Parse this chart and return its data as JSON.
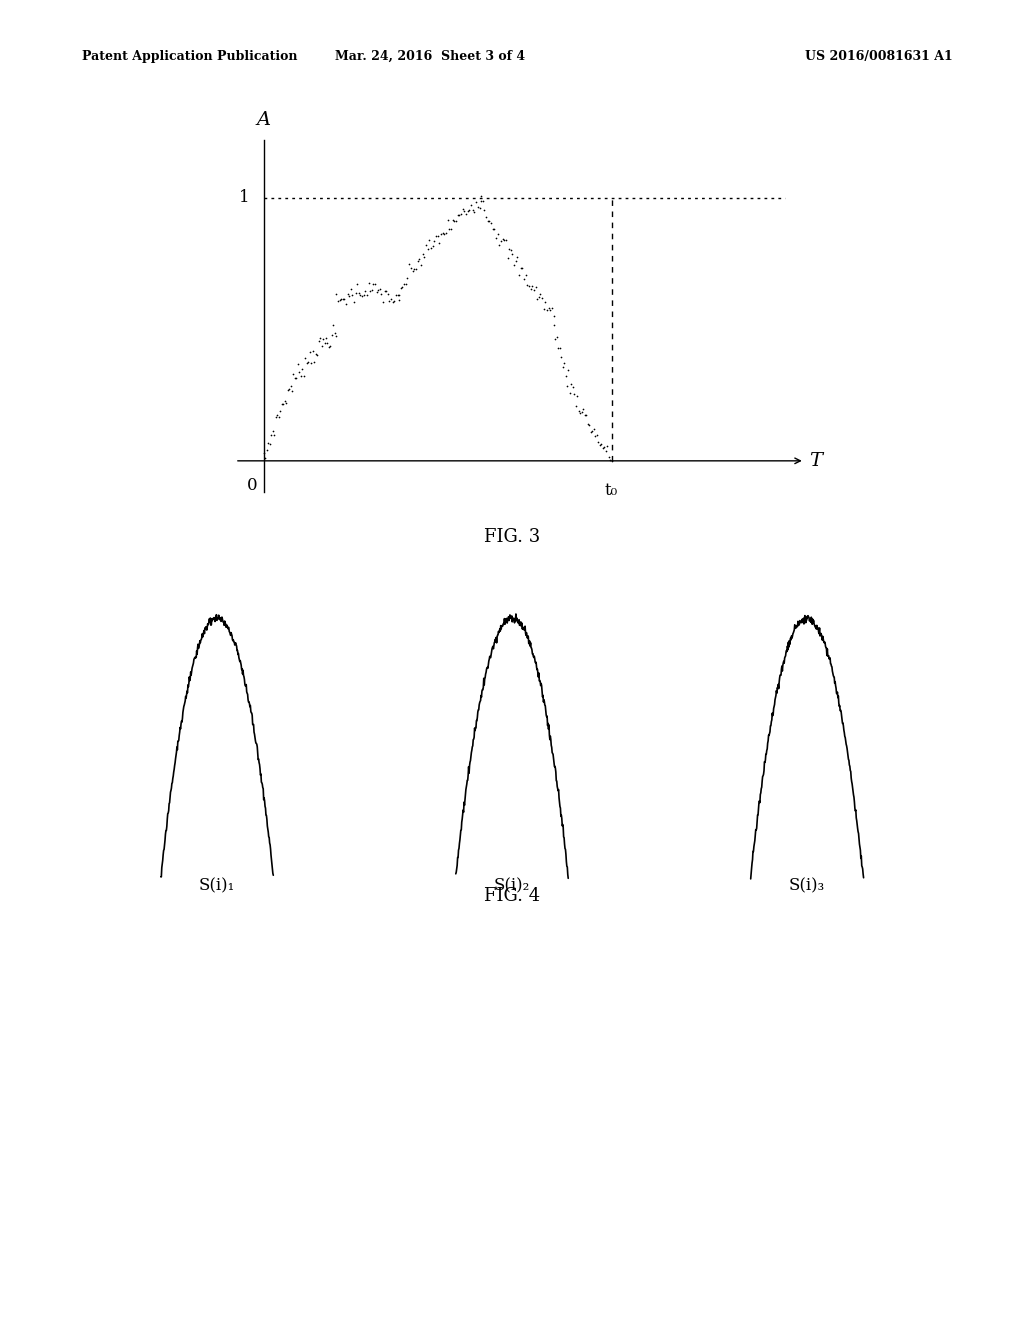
{
  "background_color": "#ffffff",
  "header_left": "Patent Application Publication",
  "header_center": "Mar. 24, 2016  Sheet 3 of 4",
  "header_right": "US 2016/0081631 A1",
  "fig3_caption": "FIG. 3",
  "fig4_caption": "FIG. 4",
  "fig3_xlabel": "T",
  "fig3_ylabel": "A",
  "fig3_x0_label": "0",
  "fig3_t0_label": "t₀",
  "fig3_y1_label": "1",
  "fig4_labels": [
    "S(i)₁",
    "S(i)₂",
    "S(i)₃"
  ]
}
